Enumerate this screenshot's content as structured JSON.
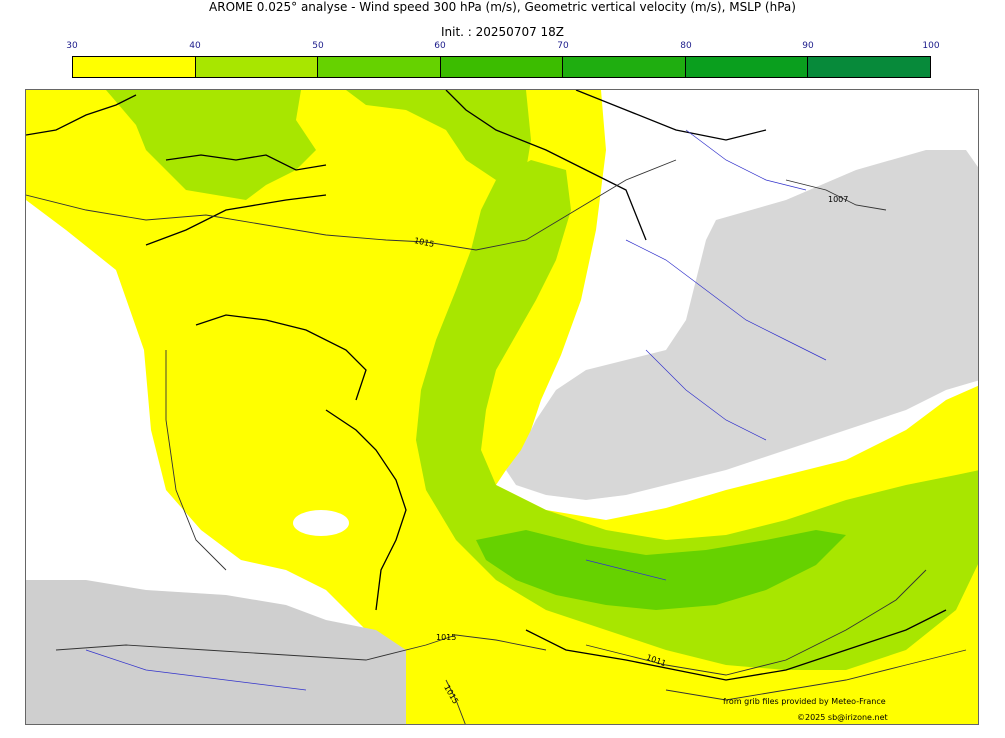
{
  "header": {
    "title": "AROME 0.025° analyse - Wind speed 300 hPa (m/s), Geometric vertical velocity (m/s), MSLP (hPa)",
    "init": "Init. : 20250707 18Z"
  },
  "colorbar": {
    "ticks": [
      "30",
      "40",
      "50",
      "60",
      "70",
      "80",
      "90",
      "100"
    ],
    "colors": [
      "#ffff00",
      "#a8e600",
      "#66d200",
      "#3cbd00",
      "#1fae10",
      "#0a9f1e",
      "#078a3a",
      "#067a4c"
    ]
  },
  "map": {
    "isobar_labels": [
      "1015",
      "1007",
      "1015",
      "1011",
      "1015"
    ],
    "colors": {
      "wind_30_40": "#ffff00",
      "wind_40_50": "#a8e600",
      "wind_50_60": "#66d200",
      "vertical_velocity": "#d7d7d7",
      "rivers": "#3333cc",
      "coast": "#000000"
    }
  },
  "footer": {
    "source": "from grib files provided by Meteo-France",
    "copyright": "©2025 sb@irizone.net"
  }
}
